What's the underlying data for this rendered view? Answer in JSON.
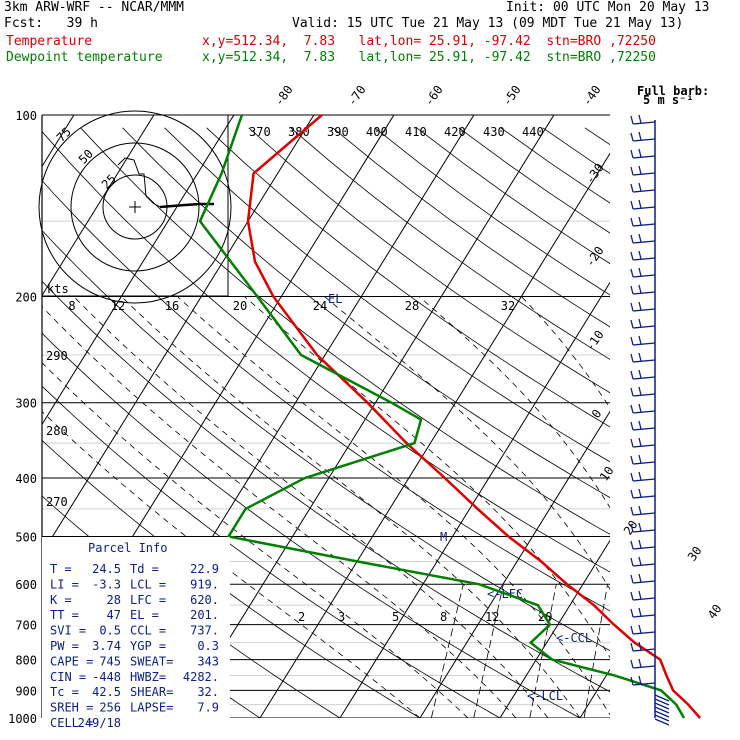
{
  "header": {
    "model": "3km ARW-WRF -- NCAR/MMM",
    "init": "Init: 00 UTC Mon 20 May 13",
    "fcst": "Fcst:   39 h",
    "valid": "Valid: 15 UTC Tue 21 May 13 (09 MDT Tue 21 May 13)",
    "temp_label": "Temperature",
    "temp_info": "x,y=512.34,  7.83   lat,lon= 25.91, -97.42  stn=BRO ,72250",
    "dew_label": "Dewpoint temperature",
    "dew_info": "x,y=512.34,  7.83   lat,lon= 25.91, -97.42  stn=BRO ,72250",
    "temp_color": "#e00000",
    "dew_color": "#008000"
  },
  "full_barb_title": "Full barb:",
  "full_barb_units": "5 m s⁻¹",
  "hodograph": {
    "units_label": "kts",
    "ring_labels": [
      "75",
      "50",
      "25"
    ]
  },
  "parcel_info": {
    "title": "Parcel Info",
    "rows": [
      [
        "T  =",
        "24.5",
        "Td =",
        "22.9"
      ],
      [
        "LI =",
        "-3.3",
        "LCL =",
        "919."
      ],
      [
        "K  =",
        "28",
        "LFC =",
        "620."
      ],
      [
        "TT =",
        "47",
        "EL =",
        "201."
      ],
      [
        "SVI =",
        "0.5",
        "CCL =",
        "737."
      ],
      [
        "PW =",
        "3.74",
        "YGP =",
        "0.3"
      ],
      [
        "CAPE =",
        "745",
        "SWEAT=",
        "343"
      ],
      [
        "CIN =",
        "-448",
        "HWBZ=",
        "4282."
      ],
      [
        "Tc =",
        "42.5",
        "SHEAR=",
        "32."
      ],
      [
        "SREH =",
        "256",
        "LAPSE=",
        "7.9"
      ],
      [
        "CELL =",
        "249/18",
        "",
        ""
      ]
    ]
  },
  "chart_data": {
    "type": "line",
    "pressure_labels": [
      "100",
      "200",
      "300",
      "400",
      "500",
      "600",
      "700",
      "800",
      "900",
      "1000"
    ],
    "temperature_labels": [
      "-80",
      "-70",
      "-60",
      "-50",
      "-40",
      "-30",
      "-20",
      "-10",
      "0",
      "10",
      "20",
      "30",
      "40"
    ],
    "theta_labels": [
      "370",
      "380",
      "390",
      "400",
      "410",
      "420",
      "430",
      "440"
    ],
    "theta_left_labels": [
      "290",
      "280",
      "270"
    ],
    "mixing_labels": [
      "2",
      "3",
      "5",
      "8",
      "12",
      "20"
    ],
    "wind_labels": [
      "8",
      "12",
      "16",
      "20",
      "24",
      "28",
      "32"
    ],
    "level_markers": [
      "EL",
      "M",
      "<-LFC",
      "<-CCL",
      "<-LCL"
    ],
    "series": [
      {
        "name": "Temperature",
        "color": "#e00000",
        "points": [
          [
            1000,
            25.0
          ],
          [
            950,
            22.5
          ],
          [
            900,
            19.5
          ],
          [
            850,
            17.5
          ],
          [
            800,
            15.5
          ],
          [
            750,
            11
          ],
          [
            700,
            7
          ],
          [
            650,
            3
          ],
          [
            600,
            -2
          ],
          [
            550,
            -7
          ],
          [
            500,
            -13
          ],
          [
            450,
            -19
          ],
          [
            400,
            -25.5
          ],
          [
            350,
            -33
          ],
          [
            300,
            -41
          ],
          [
            250,
            -51
          ],
          [
            200,
            -61
          ],
          [
            175,
            -66
          ],
          [
            150,
            -70
          ],
          [
            125,
            -73
          ],
          [
            100,
            -69
          ]
        ]
      },
      {
        "name": "Dewpoint temperature",
        "color": "#008000",
        "points": [
          [
            1000,
            23
          ],
          [
            950,
            21
          ],
          [
            900,
            18
          ],
          [
            850,
            11
          ],
          [
            800,
            2
          ],
          [
            750,
            -2
          ],
          [
            700,
            -1
          ],
          [
            650,
            -4
          ],
          [
            600,
            -13
          ],
          [
            550,
            -30
          ],
          [
            500,
            -48
          ],
          [
            450,
            -48
          ],
          [
            400,
            -43
          ],
          [
            350,
            -32
          ],
          [
            320,
            -33
          ],
          [
            300,
            -38
          ],
          [
            250,
            -53
          ],
          [
            200,
            -63
          ],
          [
            150,
            -76
          ],
          [
            125,
            -77
          ],
          [
            100,
            -79
          ]
        ]
      }
    ]
  }
}
